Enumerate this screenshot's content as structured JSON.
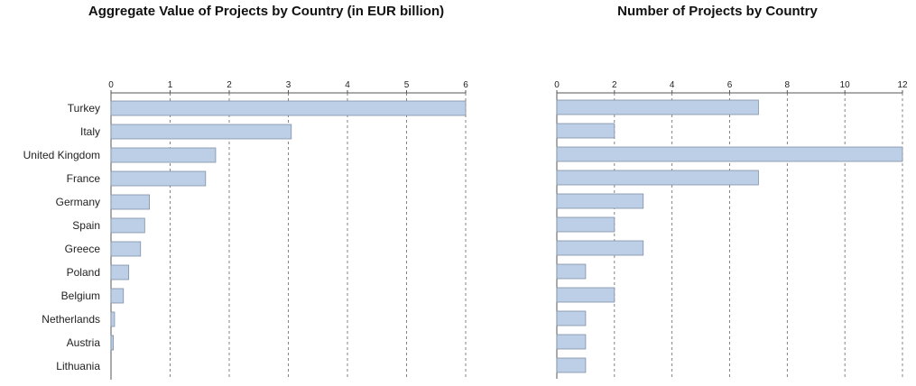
{
  "chart_data": [
    {
      "type": "bar",
      "orientation": "horizontal",
      "title": "Aggregate Value of Projects by Country (in EUR billion)",
      "xlabel": "",
      "ylabel": "",
      "categories": [
        "Turkey",
        "Italy",
        "United Kingdom",
        "France",
        "Germany",
        "Spain",
        "Greece",
        "Poland",
        "Belgium",
        "Netherlands",
        "Austria",
        "Lithuania"
      ],
      "values": [
        6.0,
        3.05,
        1.77,
        1.6,
        0.65,
        0.57,
        0.5,
        0.3,
        0.21,
        0.06,
        0.04,
        0.0
      ],
      "xlim": [
        0,
        6
      ],
      "xticks": [
        "0",
        "1",
        "2",
        "3",
        "4",
        "5",
        "6"
      ],
      "axis_position": "top",
      "grid": true,
      "bar_color": "#bccfe6",
      "bar_edge_color": "#7f8fa6"
    },
    {
      "type": "bar",
      "orientation": "horizontal",
      "title": "Number of Projects by Country",
      "xlabel": "",
      "ylabel": "",
      "categories": [
        "Turkey",
        "Italy",
        "United Kingdom",
        "France",
        "Germany",
        "Spain",
        "Greece",
        "Poland",
        "Belgium",
        "Netherlands",
        "Austria",
        "Lithuania"
      ],
      "values": [
        7,
        2,
        12,
        7,
        3,
        2,
        3,
        1,
        2,
        1,
        1,
        1
      ],
      "xlim": [
        0,
        12
      ],
      "xticks": [
        "0",
        "2",
        "4",
        "6",
        "8",
        "10",
        "12"
      ],
      "axis_position": "top",
      "grid": true,
      "bar_color": "#bccfe6",
      "bar_edge_color": "#7f8fa6"
    }
  ]
}
